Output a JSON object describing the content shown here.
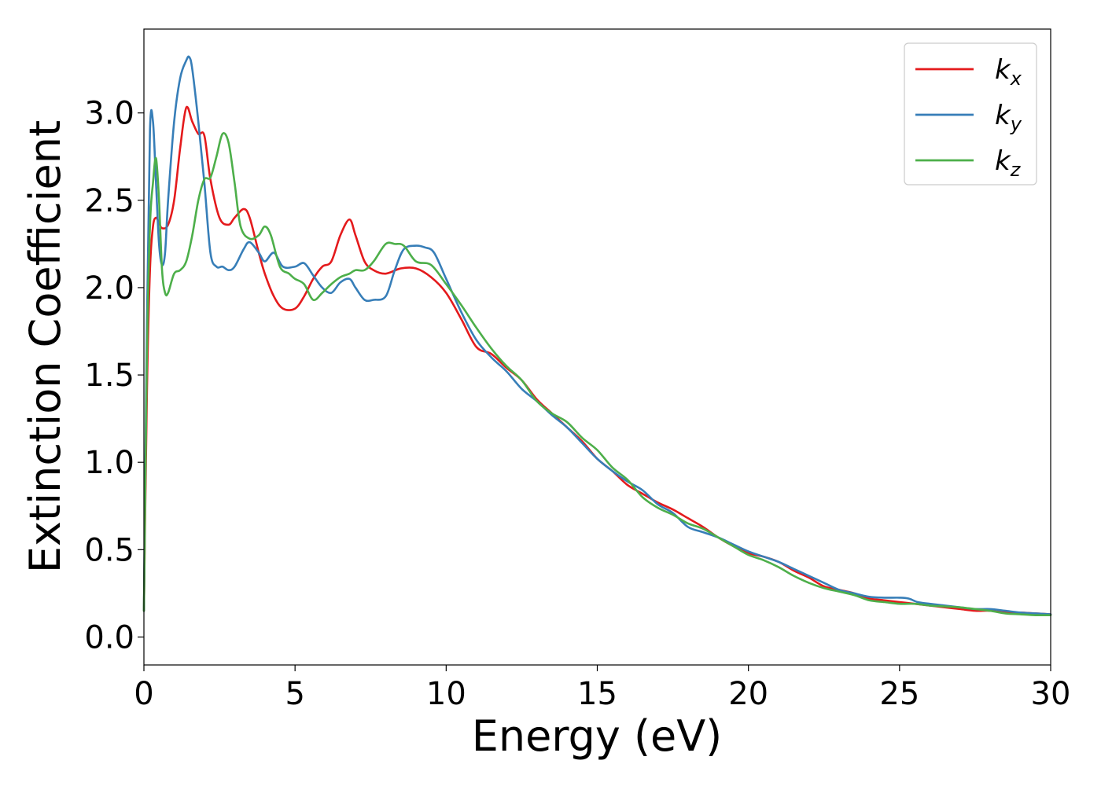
{
  "chart_data": {
    "type": "line",
    "title": "",
    "xlabel": "Energy (eV)",
    "ylabel": "Extinction Coefficient",
    "xlim": [
      0,
      30
    ],
    "ylim": [
      -0.16,
      3.48
    ],
    "xticks": [
      0,
      5,
      10,
      15,
      20,
      25,
      30
    ],
    "yticks": [
      0.0,
      0.5,
      1.0,
      1.5,
      2.0,
      2.5,
      3.0
    ],
    "xtick_labels": [
      "0",
      "5",
      "10",
      "15",
      "20",
      "25",
      "30"
    ],
    "ytick_labels": [
      "0.0",
      "0.5",
      "1.0",
      "1.5",
      "2.0",
      "2.5",
      "3.0"
    ],
    "grid": false,
    "legend_position": "top-right",
    "series": [
      {
        "name": "k",
        "subscript": "x",
        "color": "#e41a1c",
        "x": [
          0,
          0.1,
          0.2,
          0.3,
          0.4,
          0.5,
          0.6,
          0.8,
          1.0,
          1.2,
          1.4,
          1.6,
          1.8,
          2.0,
          2.2,
          2.5,
          2.8,
          3.0,
          3.3,
          3.5,
          3.8,
          4.0,
          4.3,
          4.6,
          5.0,
          5.3,
          5.6,
          5.9,
          6.2,
          6.5,
          6.8,
          7.0,
          7.3,
          7.6,
          8.0,
          8.5,
          9.0,
          9.5,
          10.0,
          10.5,
          11.0,
          11.5,
          12.0,
          12.5,
          13.0,
          13.5,
          14.0,
          14.5,
          15.0,
          15.5,
          16.0,
          16.5,
          17.0,
          17.5,
          18.0,
          18.5,
          19.0,
          19.5,
          20.0,
          20.5,
          21.0,
          21.5,
          22.0,
          22.5,
          23.0,
          23.5,
          24.0,
          24.5,
          25.0,
          25.5,
          26.0,
          26.5,
          27.0,
          27.5,
          28.0,
          28.5,
          29.0,
          29.5,
          30.0
        ],
        "values": [
          0.15,
          1.4,
          2.1,
          2.35,
          2.4,
          2.37,
          2.34,
          2.36,
          2.5,
          2.8,
          3.03,
          2.95,
          2.88,
          2.87,
          2.62,
          2.4,
          2.36,
          2.4,
          2.45,
          2.4,
          2.2,
          2.08,
          1.95,
          1.88,
          1.88,
          1.95,
          2.05,
          2.12,
          2.15,
          2.3,
          2.39,
          2.3,
          2.15,
          2.1,
          2.08,
          2.11,
          2.11,
          2.06,
          1.97,
          1.82,
          1.66,
          1.62,
          1.54,
          1.47,
          1.36,
          1.28,
          1.2,
          1.12,
          1.02,
          0.95,
          0.87,
          0.82,
          0.77,
          0.73,
          0.68,
          0.63,
          0.57,
          0.52,
          0.48,
          0.46,
          0.43,
          0.38,
          0.34,
          0.29,
          0.27,
          0.25,
          0.22,
          0.21,
          0.2,
          0.19,
          0.18,
          0.17,
          0.16,
          0.15,
          0.15,
          0.14,
          0.14,
          0.135,
          0.13
        ]
      },
      {
        "name": "k",
        "subscript": "y",
        "color": "#377eb8",
        "x": [
          0,
          0.1,
          0.2,
          0.3,
          0.4,
          0.5,
          0.6,
          0.7,
          0.8,
          1.0,
          1.2,
          1.4,
          1.5,
          1.6,
          1.8,
          2.0,
          2.2,
          2.4,
          2.6,
          2.8,
          3.0,
          3.3,
          3.5,
          3.8,
          4.0,
          4.3,
          4.6,
          5.0,
          5.3,
          5.6,
          5.9,
          6.2,
          6.5,
          6.8,
          7.0,
          7.3,
          7.6,
          8.0,
          8.3,
          8.6,
          9.0,
          9.3,
          9.6,
          10.0,
          10.5,
          11.0,
          11.5,
          12.0,
          12.5,
          13.0,
          13.5,
          14.0,
          14.5,
          15.0,
          15.5,
          16.0,
          16.5,
          17.0,
          17.5,
          18.0,
          18.5,
          19.0,
          19.5,
          20.0,
          20.5,
          21.0,
          21.5,
          22.0,
          22.5,
          23.0,
          23.5,
          24.0,
          24.5,
          25.0,
          25.3,
          25.6,
          26.0,
          26.5,
          27.0,
          27.5,
          28.0,
          28.5,
          29.0,
          29.5,
          30.0
        ],
        "values": [
          0.15,
          1.8,
          2.9,
          2.95,
          2.6,
          2.25,
          2.13,
          2.2,
          2.5,
          2.95,
          3.2,
          3.3,
          3.32,
          3.25,
          2.95,
          2.6,
          2.2,
          2.12,
          2.12,
          2.1,
          2.12,
          2.22,
          2.26,
          2.2,
          2.15,
          2.2,
          2.12,
          2.12,
          2.14,
          2.07,
          2.0,
          1.97,
          2.03,
          2.05,
          2.0,
          1.93,
          1.93,
          1.95,
          2.1,
          2.22,
          2.24,
          2.23,
          2.2,
          2.05,
          1.86,
          1.7,
          1.6,
          1.52,
          1.42,
          1.35,
          1.27,
          1.2,
          1.11,
          1.02,
          0.95,
          0.89,
          0.84,
          0.76,
          0.71,
          0.63,
          0.6,
          0.57,
          0.53,
          0.49,
          0.46,
          0.43,
          0.39,
          0.35,
          0.31,
          0.27,
          0.25,
          0.23,
          0.225,
          0.225,
          0.22,
          0.2,
          0.19,
          0.18,
          0.17,
          0.16,
          0.16,
          0.15,
          0.14,
          0.135,
          0.13
        ]
      },
      {
        "name": "k",
        "subscript": "z",
        "color": "#4daf4a",
        "x": [
          0,
          0.1,
          0.2,
          0.3,
          0.4,
          0.5,
          0.6,
          0.7,
          0.8,
          1.0,
          1.2,
          1.4,
          1.6,
          1.8,
          2.0,
          2.2,
          2.4,
          2.6,
          2.8,
          3.0,
          3.2,
          3.5,
          3.8,
          4.0,
          4.2,
          4.5,
          4.8,
          5.0,
          5.3,
          5.6,
          5.9,
          6.2,
          6.5,
          6.8,
          7.0,
          7.3,
          7.6,
          8.0,
          8.3,
          8.6,
          9.0,
          9.5,
          10.0,
          10.5,
          11.0,
          11.5,
          12.0,
          12.5,
          13.0,
          13.5,
          14.0,
          14.5,
          15.0,
          15.5,
          16.0,
          16.5,
          17.0,
          17.5,
          18.0,
          18.5,
          19.0,
          19.5,
          20.0,
          20.5,
          21.0,
          21.5,
          22.0,
          22.5,
          23.0,
          23.5,
          24.0,
          24.5,
          25.0,
          25.5,
          26.0,
          26.5,
          27.0,
          27.5,
          28.0,
          28.5,
          29.0,
          29.5,
          30.0
        ],
        "values": [
          0.15,
          1.6,
          2.35,
          2.6,
          2.74,
          2.5,
          2.1,
          1.97,
          1.97,
          2.08,
          2.1,
          2.15,
          2.3,
          2.5,
          2.62,
          2.63,
          2.75,
          2.88,
          2.83,
          2.6,
          2.35,
          2.28,
          2.3,
          2.35,
          2.3,
          2.12,
          2.08,
          2.05,
          2.02,
          1.93,
          1.97,
          2.02,
          2.06,
          2.08,
          2.1,
          2.1,
          2.15,
          2.25,
          2.25,
          2.24,
          2.15,
          2.13,
          2.02,
          1.9,
          1.77,
          1.65,
          1.55,
          1.47,
          1.35,
          1.28,
          1.23,
          1.14,
          1.07,
          0.97,
          0.9,
          0.8,
          0.74,
          0.7,
          0.65,
          0.62,
          0.57,
          0.52,
          0.47,
          0.44,
          0.4,
          0.35,
          0.31,
          0.28,
          0.26,
          0.24,
          0.21,
          0.2,
          0.19,
          0.19,
          0.18,
          0.175,
          0.17,
          0.16,
          0.15,
          0.135,
          0.13,
          0.125,
          0.125
        ]
      }
    ]
  }
}
